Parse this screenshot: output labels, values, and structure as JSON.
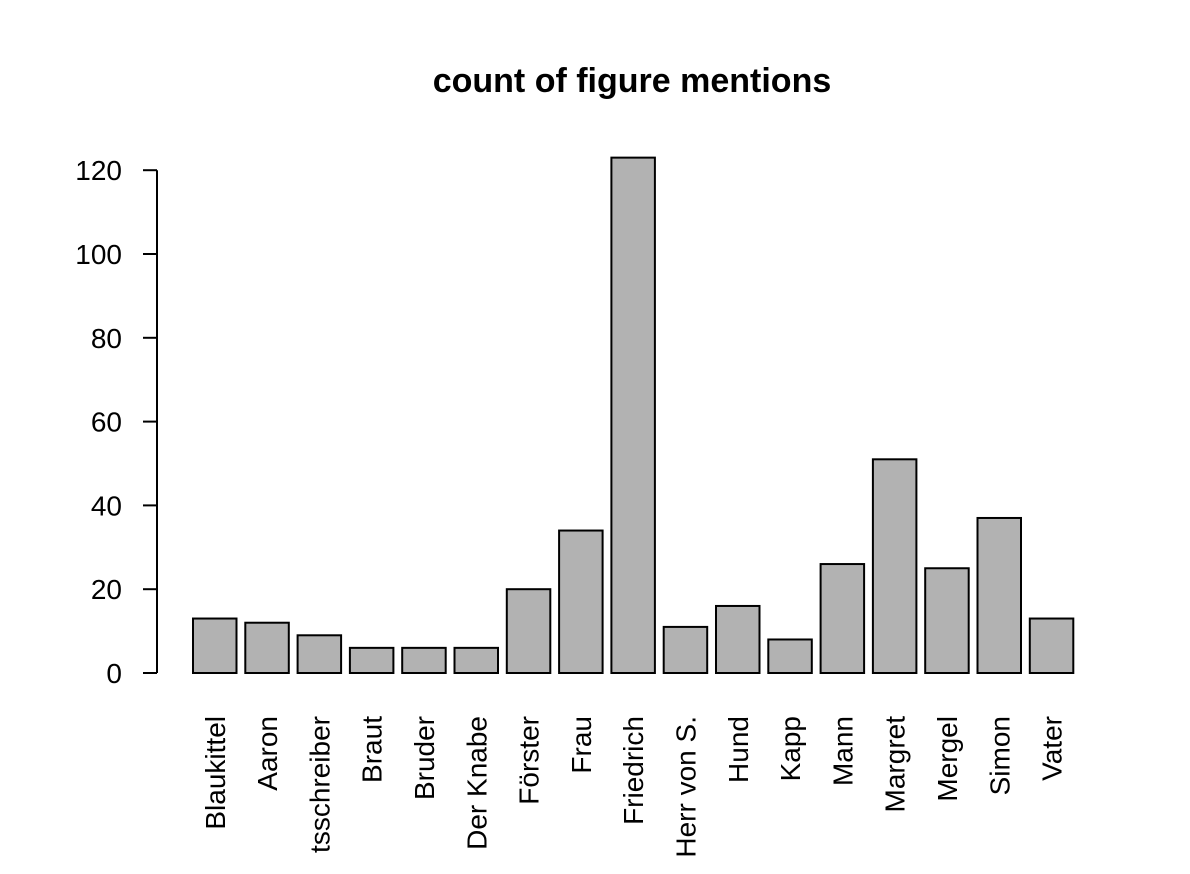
{
  "chart_data": {
    "type": "bar",
    "title": "count of figure mentions",
    "xlabel": "",
    "ylabel": "",
    "categories": [
      "Blaukittel",
      "Aaron",
      "tsschreiber",
      "Braut",
      "Bruder",
      "Der Knabe",
      "Förster",
      "Frau",
      "Friedrich",
      "Herr von S.",
      "Hund",
      "Kapp",
      "Mann",
      "Margret",
      "Mergel",
      "Simon",
      "Vater"
    ],
    "values": [
      13,
      12,
      9,
      6,
      6,
      6,
      20,
      34,
      123,
      11,
      16,
      8,
      26,
      51,
      25,
      37,
      13
    ],
    "ylim": [
      0,
      120
    ],
    "yticks": [
      0,
      20,
      40,
      60,
      80,
      100,
      120
    ],
    "grid": false,
    "bar_color": "#b2b2b2",
    "bar_edge_color": "#000000"
  }
}
